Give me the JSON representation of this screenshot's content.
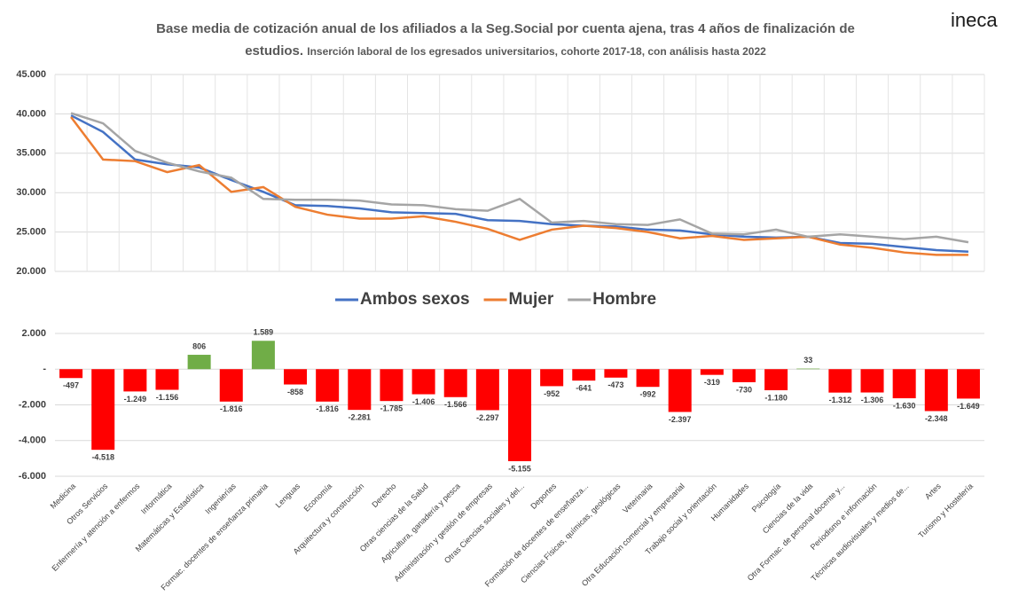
{
  "logo": "ineca",
  "chart_data": [
    {
      "type": "line",
      "title": "Base media de cotización anual de los afiliados a la Seg.Social por cuenta ajena, tras 4 años de finalización de estudios.",
      "subtitle": "Inserción laboral de los egresados universitarios, cohorte 2017-18, con análisis hasta 2022",
      "ylim": [
        20000,
        45000
      ],
      "yticks": [
        {
          "value": 20000,
          "label": "20.000"
        },
        {
          "value": 25000,
          "label": "25.000"
        },
        {
          "value": 30000,
          "label": "30.000"
        },
        {
          "value": 35000,
          "label": "35.000"
        },
        {
          "value": 40000,
          "label": "40.000"
        },
        {
          "value": 45000,
          "label": "45.000"
        }
      ],
      "grid": true,
      "legend": "bottom",
      "series": [
        {
          "name": "Ambos sexos",
          "color": "#4472c4",
          "values": [
            39800,
            37700,
            34200,
            33600,
            33200,
            31600,
            30100,
            28400,
            28300,
            28000,
            27500,
            27400,
            27300,
            26500,
            26400,
            26000,
            25800,
            25700,
            25300,
            25200,
            24700,
            24400,
            24300,
            24400,
            23600,
            23500,
            23100,
            22700,
            22500
          ]
        },
        {
          "name": "Mujer",
          "color": "#ed7d31",
          "values": [
            39600,
            34200,
            34000,
            32600,
            33500,
            30100,
            30700,
            28200,
            27200,
            26700,
            26700,
            27000,
            26300,
            25400,
            24000,
            25300,
            25800,
            25500,
            25000,
            24200,
            24500,
            24000,
            24200,
            24400,
            23400,
            23000,
            22400,
            22100,
            22100
          ]
        },
        {
          "name": "Hombre",
          "color": "#a5a5a5",
          "values": [
            40100,
            38800,
            35300,
            33800,
            32700,
            31900,
            29200,
            29100,
            29100,
            29000,
            28500,
            28400,
            27900,
            27700,
            29200,
            26200,
            26400,
            26000,
            25900,
            26600,
            24800,
            24700,
            25300,
            24400,
            24700,
            24400,
            24100,
            24400,
            23700
          ]
        }
      ]
    },
    {
      "type": "bar",
      "categories": [
        "Medicina",
        "Otros Servicios",
        "Enfermería y atención a enfermos",
        "Informática",
        "Matemáticas y Estadística",
        "Ingenierías",
        "Formac. docentes de enseñanza primaria",
        "Lenguas",
        "Economía",
        "Arquitectura y construcción",
        "Derecho",
        "Otras ciencias de la Salud",
        "Agricultura, ganadería y pesca",
        "Administración y gestión de empresas",
        "Otras Ciencias sociales y del...",
        "Deportes",
        "Formación de docentes de enseñanza...",
        "Ciencias Físicas, químicas, geológicas",
        "Veterinaria",
        "Otra Educación comercial y empresarial",
        "Trabajo social y orientación",
        "Humanidades",
        "Psicología",
        "Ciencias de la vida",
        "Otra Formac. de personal docente y...",
        "Periodismo e información",
        "Técnicas audiovisuales y medios de...",
        "Artes",
        "Turismo y Hostelería"
      ],
      "values": [
        -497,
        -4518,
        -1249,
        -1156,
        806,
        -1816,
        1589,
        -858,
        -1816,
        -2281,
        -1785,
        -1406,
        -1566,
        -2297,
        -5155,
        -952,
        -641,
        -473,
        -992,
        -2397,
        -319,
        -730,
        -1180,
        33,
        -1312,
        -1306,
        -1630,
        -2348,
        -1649
      ],
      "value_labels": [
        "-497",
        "-4.518",
        "-1.249",
        "-1.156",
        "806",
        "-1.816",
        "1.589",
        "-858",
        "-1.816",
        "-2.281",
        "-1.785",
        "-1.406",
        "-1.566",
        "-2.297",
        "-5.155",
        "-952",
        "-641",
        "-473",
        "-992",
        "-2.397",
        "-319",
        "-730",
        "-1.180",
        "33",
        "-1.312",
        "-1.306",
        "-1.630",
        "-2.348",
        "-1.649"
      ],
      "color": "#ff0000",
      "positive_color": "#70ad47",
      "ylim": [
        -6000,
        2000
      ],
      "yticks": [
        {
          "value": -6000,
          "label": "-6.000"
        },
        {
          "value": -4000,
          "label": "-4.000"
        },
        {
          "value": -2000,
          "label": "-2.000"
        },
        {
          "value": 0,
          "label": "-"
        },
        {
          "value": 2000,
          "label": "2.000"
        }
      ],
      "grid": true
    }
  ]
}
